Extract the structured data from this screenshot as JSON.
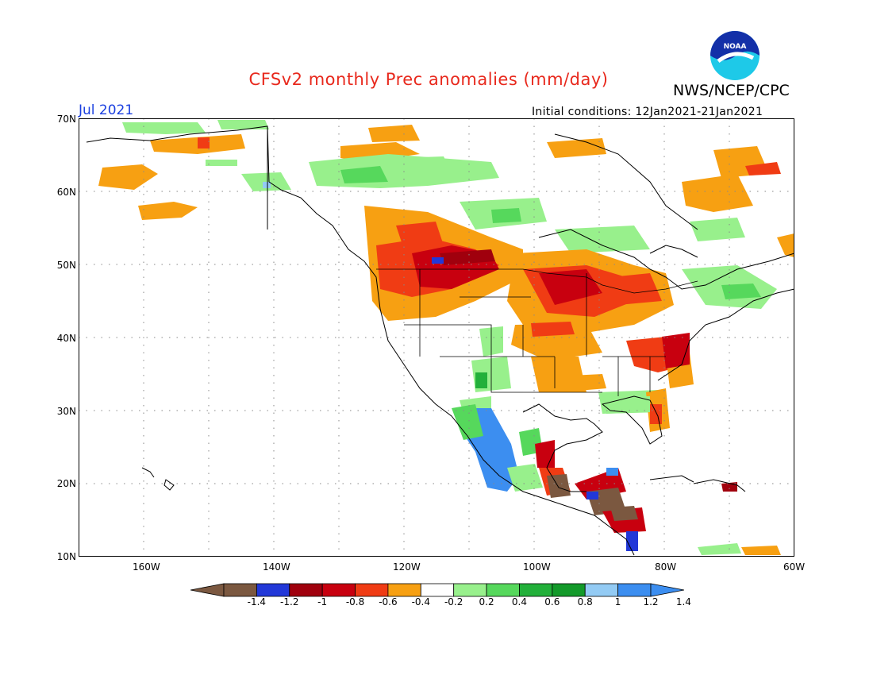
{
  "header": {
    "title": "CFSv2 monthly Prec anomalies (mm/day)",
    "org": "NWS/NCEP/CPC",
    "logo_text": "NOAA",
    "month": "Jul 2021",
    "initial_conditions": "Initial conditions: 12Jan2021-21Jan2021"
  },
  "map": {
    "lat_labels": [
      "70N",
      "60N",
      "50N",
      "40N",
      "30N",
      "20N",
      "10N"
    ],
    "lon_labels": [
      "160W",
      "140W",
      "120W",
      "100W",
      "80W",
      "60W"
    ],
    "extent": {
      "lon_min": -170,
      "lon_max": -60,
      "lat_min": 10,
      "lat_max": 70
    },
    "gridlines": true
  },
  "colorbar": {
    "labels": [
      "-1.4",
      "-1.2",
      "-1",
      "-0.8",
      "-0.6",
      "-0.4",
      "-0.2",
      "0.2",
      "0.4",
      "0.6",
      "0.8",
      "1",
      "1.2",
      "1.4"
    ],
    "colors": [
      "#7b5840",
      "#2238d8",
      "#a0000d",
      "#c8000f",
      "#f03c14",
      "#f7a012",
      "#ffffff",
      "#98f08c",
      "#56d85c",
      "#22b03a",
      "#139a2a",
      "#93cbf4",
      "#3c8ef0"
    ],
    "end_low_color": "#7b5840",
    "end_high_color": "#3c8ef0"
  },
  "palette": {
    "orange": "#f7a012",
    "red_orange": "#f03c14",
    "red": "#c8000f",
    "dark_red": "#a0000d",
    "light_green": "#98f08c",
    "green": "#56d85c",
    "dark_green": "#22b03a",
    "light_blue": "#93cbf4",
    "blue": "#3c8ef0",
    "deep_blue": "#2238d8",
    "brown": "#7b5840"
  }
}
